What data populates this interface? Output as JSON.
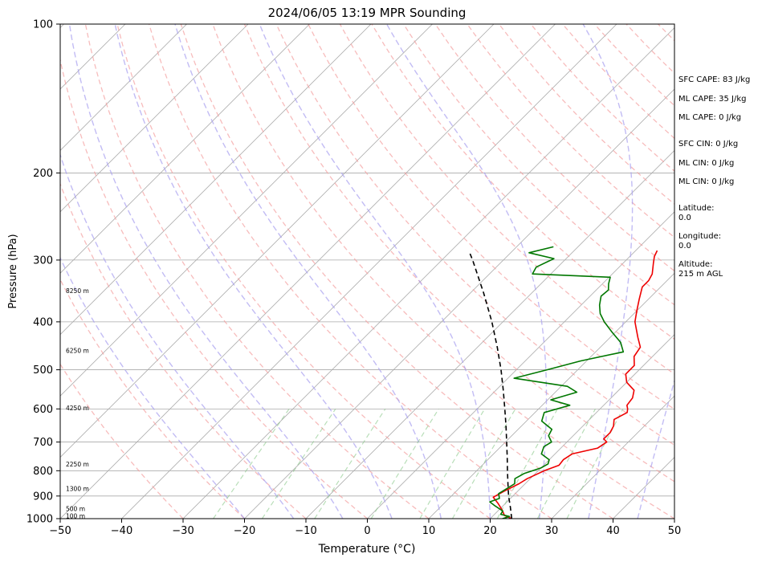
{
  "chart_data": {
    "type": "line",
    "title": "2024/06/05 13:19 MPR Sounding",
    "xlabel": "Temperature (°C)",
    "ylabel": "Pressure (hPa)",
    "xlim": [
      -50,
      50
    ],
    "ylim": [
      1000,
      100
    ],
    "y_scale": "log",
    "x_ticks": [
      "−50",
      "−40",
      "−30",
      "−20",
      "−10",
      "0",
      "10",
      "20",
      "30",
      "40",
      "50"
    ],
    "y_ticks": [
      {
        "p": 1000,
        "label": "1000"
      },
      {
        "p": 900,
        "label": "900"
      },
      {
        "p": 800,
        "label": "800"
      },
      {
        "p": 700,
        "label": "700"
      },
      {
        "p": 600,
        "label": "600"
      },
      {
        "p": 500,
        "label": "500"
      },
      {
        "p": 400,
        "label": "400"
      },
      {
        "p": 300,
        "label": "300"
      },
      {
        "p": 200,
        "label": "200"
      },
      {
        "p": 100,
        "label": "100"
      }
    ],
    "height_labels": [
      {
        "p": 987,
        "label": "100 m"
      },
      {
        "p": 955,
        "label": "500 m"
      },
      {
        "p": 870,
        "label": "1300 m"
      },
      {
        "p": 776,
        "label": "2250 m"
      },
      {
        "p": 597,
        "label": "4250 m"
      },
      {
        "p": 457,
        "label": "6250 m"
      },
      {
        "p": 346,
        "label": "8250 m"
      }
    ],
    "annotations": [
      "SFC CAPE: 83 J/kg",
      "ML CAPE: 35 J/kg",
      "ML CAPE: 0 J/kg",
      "SFC CIN: 0 J/kg",
      "ML CIN: 0 J/kg",
      "ML CIN: 0 J/kg",
      "Latitude:",
      "0.0",
      "Longitude:",
      "0.0",
      "Altitude:",
      "215 m AGL"
    ],
    "temperature": {
      "color": "#ee0000",
      "points": [
        [
          1000,
          23.5
        ],
        [
          985,
          21.8
        ],
        [
          960,
          20.5
        ],
        [
          930,
          18.7
        ],
        [
          905,
          17.0
        ],
        [
          880,
          17.8
        ],
        [
          850,
          19.0
        ],
        [
          830,
          19.5
        ],
        [
          800,
          21.0
        ],
        [
          780,
          22.5
        ],
        [
          760,
          22.3
        ],
        [
          740,
          22.8
        ],
        [
          720,
          26.0
        ],
        [
          700,
          26.5
        ],
        [
          690,
          25.5
        ],
        [
          670,
          25.5
        ],
        [
          650,
          25.0
        ],
        [
          630,
          24.0
        ],
        [
          610,
          25.0
        ],
        [
          600,
          24.5
        ],
        [
          590,
          23.8
        ],
        [
          570,
          23.5
        ],
        [
          550,
          22.5
        ],
        [
          530,
          20.0
        ],
        [
          510,
          18.5
        ],
        [
          490,
          18.5
        ],
        [
          470,
          17.0
        ],
        [
          450,
          16.5
        ],
        [
          430,
          14.5
        ],
        [
          400,
          11.5
        ],
        [
          380,
          10.0
        ],
        [
          360,
          8.5
        ],
        [
          340,
          7.0
        ],
        [
          330,
          7.0
        ],
        [
          320,
          6.5
        ],
        [
          305,
          5.0
        ],
        [
          295,
          4.0
        ],
        [
          287,
          3.5
        ]
      ]
    },
    "dewpoint": {
      "color": "#007700",
      "points": [
        [
          1000,
          22.0
        ],
        [
          990,
          22.8
        ],
        [
          980,
          21.0
        ],
        [
          965,
          20.8
        ],
        [
          940,
          18.5
        ],
        [
          925,
          17.2
        ],
        [
          910,
          18.2
        ],
        [
          890,
          17.3
        ],
        [
          870,
          17.8
        ],
        [
          850,
          18.3
        ],
        [
          830,
          17.5
        ],
        [
          810,
          18.2
        ],
        [
          790,
          20.0
        ],
        [
          775,
          20.5
        ],
        [
          760,
          20.0
        ],
        [
          740,
          17.8
        ],
        [
          715,
          17.0
        ],
        [
          700,
          17.5
        ],
        [
          680,
          16.0
        ],
        [
          660,
          15.5
        ],
        [
          635,
          12.5
        ],
        [
          610,
          11.5
        ],
        [
          590,
          14.5
        ],
        [
          575,
          10.5
        ],
        [
          555,
          13.5
        ],
        [
          540,
          11.0
        ],
        [
          520,
          1.0
        ],
        [
          500,
          5.0
        ],
        [
          480,
          9.0
        ],
        [
          460,
          14.5
        ],
        [
          440,
          12.5
        ],
        [
          420,
          9.5
        ],
        [
          400,
          6.5
        ],
        [
          385,
          4.5
        ],
        [
          370,
          3.0
        ],
        [
          355,
          1.8
        ],
        [
          345,
          2.0
        ],
        [
          335,
          1.0
        ],
        [
          325,
          0.2
        ],
        [
          320,
          -13.0
        ],
        [
          310,
          -13.5
        ],
        [
          298,
          -12.0
        ],
        [
          290,
          -17.0
        ],
        [
          282,
          -14.0
        ]
      ]
    },
    "parcel": {
      "color": "#000000",
      "points": [
        [
          1000,
          23.5
        ],
        [
          950,
          21.5
        ],
        [
          900,
          19.3
        ],
        [
          850,
          17.2
        ],
        [
          800,
          15.0
        ],
        [
          750,
          12.7
        ],
        [
          700,
          10.2
        ],
        [
          650,
          7.5
        ],
        [
          600,
          4.5
        ],
        [
          550,
          1.2
        ],
        [
          500,
          -2.5
        ],
        [
          450,
          -6.8
        ],
        [
          400,
          -11.8
        ],
        [
          350,
          -17.8
        ],
        [
          300,
          -25.0
        ],
        [
          288,
          -27.0
        ]
      ]
    }
  }
}
